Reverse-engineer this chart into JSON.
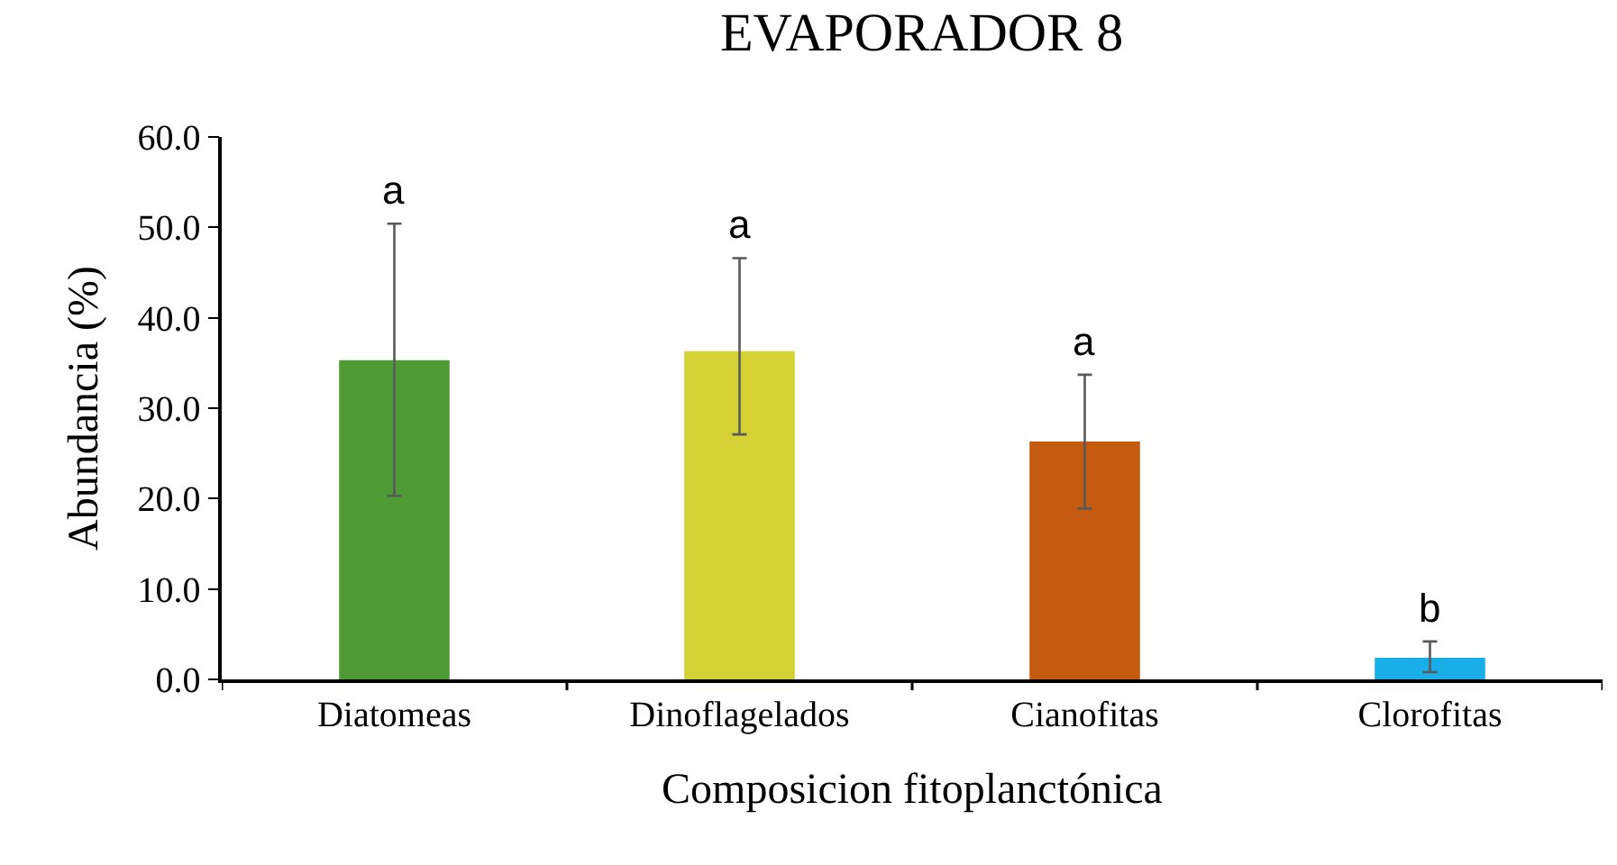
{
  "chart_data": {
    "type": "bar",
    "title": "EVAPORADOR 8",
    "xlabel": "Composicion fitoplanctónica",
    "ylabel": "Abundancia (%)",
    "categories": [
      "Diatomeas",
      "Dinoflagelados",
      "Cianofitas",
      "Clorofitas"
    ],
    "values": [
      35.3,
      36.3,
      26.3,
      2.4
    ],
    "colors": [
      "#4e9a35",
      "#d4d234",
      "#c55a11",
      "#1aaee8"
    ],
    "errors": [
      [
        20.3,
        50.4
      ],
      [
        27.1,
        46.6
      ],
      [
        18.9,
        33.7
      ],
      [
        0.8,
        4.2
      ]
    ],
    "ylim": [
      0,
      60
    ],
    "yticks": [
      {
        "value": 0,
        "label": "0.0"
      },
      {
        "value": 10,
        "label": "10.0"
      },
      {
        "value": 20,
        "label": "20.0"
      },
      {
        "value": 30,
        "label": "30.0"
      },
      {
        "value": 40,
        "label": "40.0"
      },
      {
        "value": 50,
        "label": "50.0"
      },
      {
        "value": 60,
        "label": "60.0"
      }
    ],
    "annotations": [
      {
        "text": "a",
        "x": "Diatomeas",
        "y": 50.4
      },
      {
        "text": "a",
        "x": "Dinoflagelados",
        "y": 46.6
      },
      {
        "text": "a",
        "x": "Cianofitas",
        "y": 33.7
      },
      {
        "text": "b",
        "x": "Clorofitas",
        "y": 4.2
      }
    ]
  }
}
